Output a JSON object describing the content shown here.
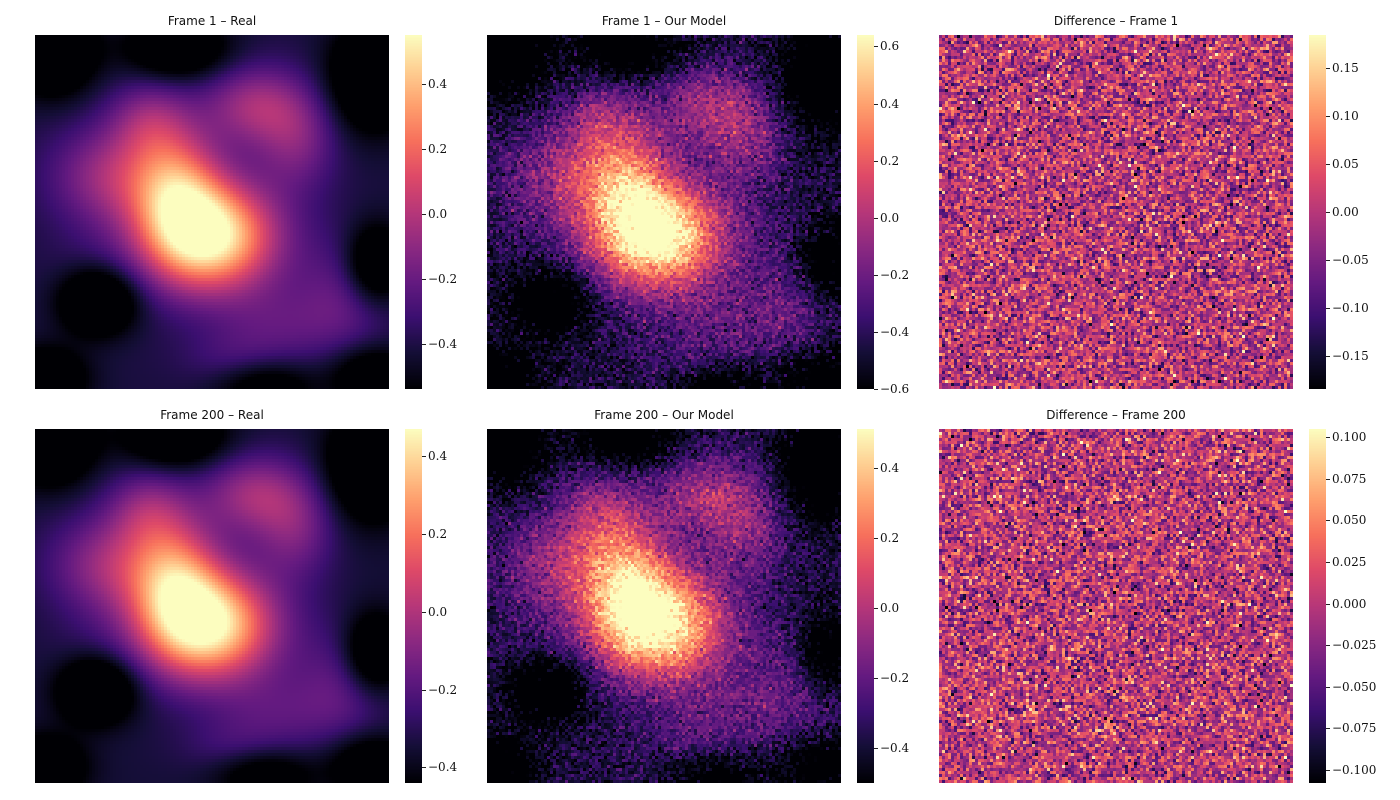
{
  "chart_data": [
    {
      "type": "heatmap",
      "title": "Frame 1 – Real",
      "colormap": "magma",
      "field": "real",
      "frame": 1,
      "noise": 0.0,
      "vmin": -0.54,
      "vmax": 0.55,
      "ticks": [
        "0.4",
        "0.2",
        "0.0",
        "−0.2",
        "−0.4"
      ],
      "tick_values": [
        0.4,
        0.2,
        0.0,
        -0.2,
        -0.4
      ]
    },
    {
      "type": "heatmap",
      "title": "Frame 1 – Our Model",
      "colormap": "magma",
      "field": "model",
      "frame": 1,
      "noise": 0.09,
      "vmin": -0.6,
      "vmax": 0.64,
      "ticks": [
        "0.6",
        "0.4",
        "0.2",
        "0.0",
        "−0.2",
        "−0.4",
        "−0.6"
      ],
      "tick_values": [
        0.6,
        0.4,
        0.2,
        0.0,
        -0.2,
        -0.4,
        -0.6
      ]
    },
    {
      "type": "heatmap",
      "title": "Difference – Frame 1",
      "colormap": "magma",
      "field": "difference",
      "frame": 1,
      "noise": 0.06,
      "vmin": -0.185,
      "vmax": 0.185,
      "ticks": [
        "0.15",
        "0.10",
        "0.05",
        "0.00",
        "−0.05",
        "−0.10",
        "−0.15"
      ],
      "tick_values": [
        0.15,
        0.1,
        0.05,
        0.0,
        -0.05,
        -0.1,
        -0.15
      ]
    },
    {
      "type": "heatmap",
      "title": "Frame 200 – Real",
      "colormap": "magma",
      "field": "real",
      "frame": 200,
      "noise": 0.0,
      "vmin": -0.44,
      "vmax": 0.47,
      "ticks": [
        "0.4",
        "0.2",
        "0.0",
        "−0.2",
        "−0.4"
      ],
      "tick_values": [
        0.4,
        0.2,
        0.0,
        -0.2,
        -0.4
      ]
    },
    {
      "type": "heatmap",
      "title": "Frame 200 – Our Model",
      "colormap": "magma",
      "field": "model",
      "frame": 200,
      "noise": 0.07,
      "vmin": -0.5,
      "vmax": 0.51,
      "ticks": [
        "0.4",
        "0.2",
        "0.0",
        "−0.2",
        "−0.4"
      ],
      "tick_values": [
        0.4,
        0.2,
        0.0,
        -0.2,
        -0.4
      ]
    },
    {
      "type": "heatmap",
      "title": "Difference – Frame 200",
      "colormap": "magma",
      "field": "difference",
      "frame": 200,
      "noise": 0.035,
      "vmin": -0.108,
      "vmax": 0.105,
      "ticks": [
        "0.100",
        "0.075",
        "0.050",
        "0.025",
        "0.000",
        "−0.025",
        "−0.050",
        "−0.075",
        "−0.100"
      ],
      "tick_values": [
        0.1,
        0.075,
        0.05,
        0.025,
        0.0,
        -0.025,
        -0.05,
        -0.075,
        -0.1
      ]
    }
  ]
}
